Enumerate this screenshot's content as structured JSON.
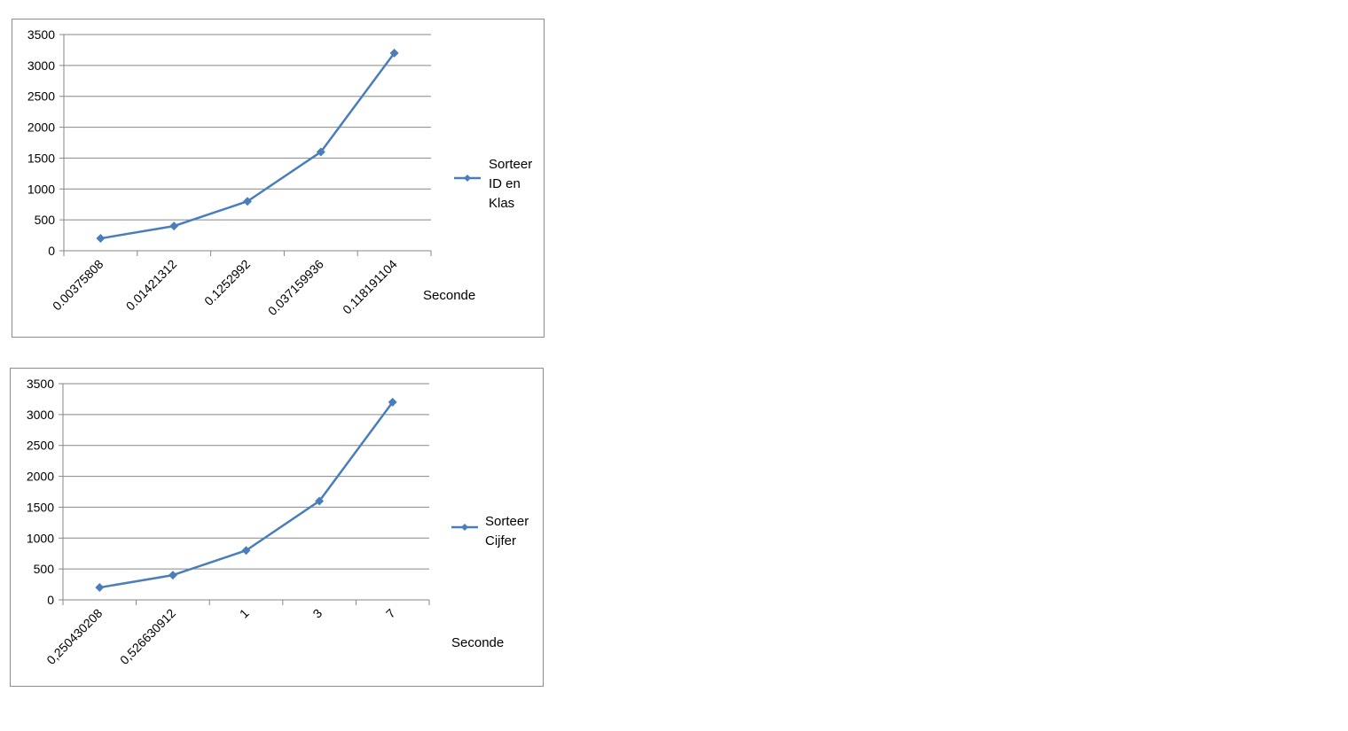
{
  "chart_data": [
    {
      "type": "line",
      "categories": [
        "0.00375808",
        "0.01421312",
        "0.1252992",
        "0.037159936",
        "0.118191104"
      ],
      "series": [
        {
          "name": "Sorteer ID en Klas",
          "values": [
            200,
            400,
            800,
            1600,
            3200
          ]
        }
      ],
      "legend_lines": [
        "Sorteer",
        "ID en",
        "Klas"
      ],
      "xlabel": "Seconde",
      "ylabel": "",
      "yticks": [
        "0",
        "500",
        "1000",
        "1500",
        "2000",
        "2500",
        "3000",
        "3500"
      ],
      "ylim": [
        0,
        3500
      ],
      "grid": true,
      "legend": "right",
      "color": "#4a7ebb"
    },
    {
      "type": "line",
      "categories": [
        "0,250430208",
        "0,526630912",
        "1",
        "3",
        "7"
      ],
      "series": [
        {
          "name": "Sorteer Cijfer",
          "values": [
            200,
            400,
            800,
            1600,
            3200
          ]
        }
      ],
      "legend_lines": [
        "Sorteer",
        "Cijfer"
      ],
      "xlabel": "Seconde",
      "ylabel": "",
      "yticks": [
        "0",
        "500",
        "1000",
        "1500",
        "2000",
        "2500",
        "3000",
        "3500"
      ],
      "ylim": [
        0,
        3500
      ],
      "grid": true,
      "legend": "right",
      "color": "#4a7ebb"
    }
  ]
}
